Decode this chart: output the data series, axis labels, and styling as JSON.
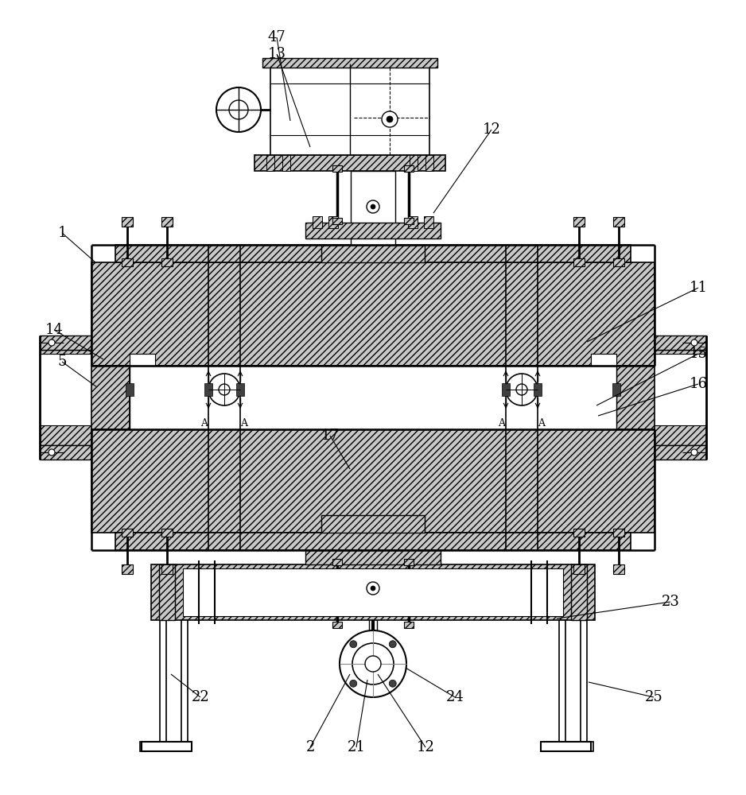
{
  "bg_color": "#ffffff",
  "lc": "#000000",
  "HATCH": "////",
  "GRAY": "#c8c8c8",
  "fig_w": 9.38,
  "fig_h": 10.0,
  "dpi": 100,
  "annotations": [
    [
      "47",
      348,
      47,
      365,
      152
    ],
    [
      "13",
      348,
      68,
      390,
      185
    ],
    [
      "12",
      618,
      163,
      545,
      268
    ],
    [
      "1",
      78,
      293,
      120,
      330
    ],
    [
      "14",
      68,
      415,
      130,
      452
    ],
    [
      "5",
      78,
      455,
      122,
      487
    ],
    [
      "11",
      878,
      362,
      738,
      430
    ],
    [
      "15",
      878,
      445,
      750,
      510
    ],
    [
      "16",
      878,
      483,
      752,
      523
    ],
    [
      "17",
      415,
      548,
      440,
      590
    ],
    [
      "22",
      252,
      877,
      215,
      848
    ],
    [
      "2",
      390,
      940,
      440,
      848
    ],
    [
      "21",
      448,
      940,
      462,
      855
    ],
    [
      "12",
      535,
      940,
      475,
      848
    ],
    [
      "24",
      572,
      877,
      510,
      840
    ],
    [
      "25",
      822,
      877,
      740,
      858
    ],
    [
      "23",
      843,
      757,
      700,
      778
    ]
  ]
}
